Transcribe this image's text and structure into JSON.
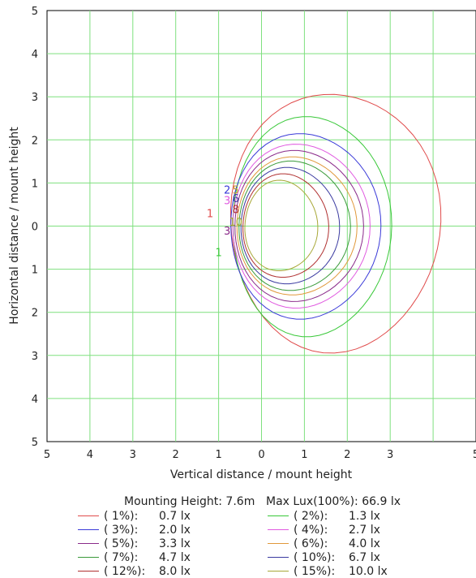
{
  "chart_data": {
    "type": "contour",
    "xlabel": "Vertical distance / mount height",
    "ylabel": "Horizontal distance / mount height",
    "x_ticks": [
      "5",
      "4",
      "3",
      "2",
      "1",
      "0",
      "1",
      "2",
      "3",
      "5"
    ],
    "y_ticks": [
      "5",
      "4",
      "3",
      "2",
      "1",
      "0",
      "1",
      "2",
      "3",
      "4",
      "5"
    ],
    "xlim": [
      -5,
      5
    ],
    "ylim": [
      -5,
      5
    ],
    "grid": true,
    "mounting_height_label": "Mounting Height: 7.6m",
    "max_lux_label": "Max Lux(100%): 66.9 lx",
    "levels": [
      {
        "id": "1",
        "percent": "( 1%):",
        "lux": "0.7 lx",
        "color": "#e04b4b",
        "cx": 1.7,
        "cy": 0.1,
        "rx": 2.45,
        "ry": 3.0
      },
      {
        "id": "2",
        "percent": "( 2%):",
        "lux": "1.3 lx",
        "color": "#38c838",
        "cx": 1.15,
        "cy": 0.0,
        "rx": 1.85,
        "ry": 2.55
      },
      {
        "id": "3",
        "percent": "( 3%):",
        "lux": "2.0 lx",
        "color": "#3a3ad8",
        "cx": 1.0,
        "cy": 0.0,
        "rx": 1.75,
        "ry": 2.15
      },
      {
        "id": "4",
        "percent": "( 4%):",
        "lux": "2.7 lx",
        "color": "#e05ae0",
        "cx": 0.9,
        "cy": 0.0,
        "rx": 1.6,
        "ry": 1.9
      },
      {
        "id": "5",
        "percent": "( 5%):",
        "lux": "3.3 lx",
        "color": "#8a2a8a",
        "cx": 0.85,
        "cy": 0.0,
        "rx": 1.5,
        "ry": 1.75
      },
      {
        "id": "6",
        "percent": "( 6%):",
        "lux": "4.0 lx",
        "color": "#e0983a",
        "cx": 0.8,
        "cy": 0.0,
        "rx": 1.4,
        "ry": 1.6
      },
      {
        "id": "7",
        "percent": "( 7%):",
        "lux": "4.7 lx",
        "color": "#3a9a3a",
        "cx": 0.75,
        "cy": 0.0,
        "rx": 1.3,
        "ry": 1.5
      },
      {
        "id": "8",
        "percent": "( 10%):",
        "lux": "6.7 lx",
        "color": "#3a3aa0",
        "cx": 0.65,
        "cy": 0.0,
        "rx": 1.15,
        "ry": 1.35
      },
      {
        "id": "9",
        "percent": "( 12%):",
        "lux": "8.0 lx",
        "color": "#b03030",
        "cx": 0.55,
        "cy": 0.0,
        "rx": 1.0,
        "ry": 1.2
      },
      {
        "id": "10",
        "percent": "( 15%):",
        "lux": "10.0 lx",
        "color": "#a8a838",
        "cx": 0.45,
        "cy": 0.0,
        "rx": 0.85,
        "ry": 1.05
      }
    ],
    "contour_labels": [
      {
        "text": "1",
        "color": "#e04b4b",
        "x": -1.2,
        "y": 0.3
      },
      {
        "text": "2",
        "color": "#3a3ad8",
        "x": -0.8,
        "y": 0.85
      },
      {
        "text": "3",
        "color": "#e05ae0",
        "x": -0.8,
        "y": 0.6
      },
      {
        "text": "5",
        "color": "#c8a038",
        "x": -0.6,
        "y": 0.85
      },
      {
        "text": "6",
        "color": "#3a3aa0",
        "x": -0.6,
        "y": 0.65
      },
      {
        "text": "8",
        "color": "#b03030",
        "x": -0.6,
        "y": 0.4
      },
      {
        "text": "10",
        "color": "#a8a838",
        "x": -0.6,
        "y": 0.1
      },
      {
        "text": "3",
        "color": "#8a2a8a",
        "x": -0.8,
        "y": -0.1
      },
      {
        "text": "1",
        "color": "#38c838",
        "x": -1.0,
        "y": -0.6
      }
    ]
  }
}
